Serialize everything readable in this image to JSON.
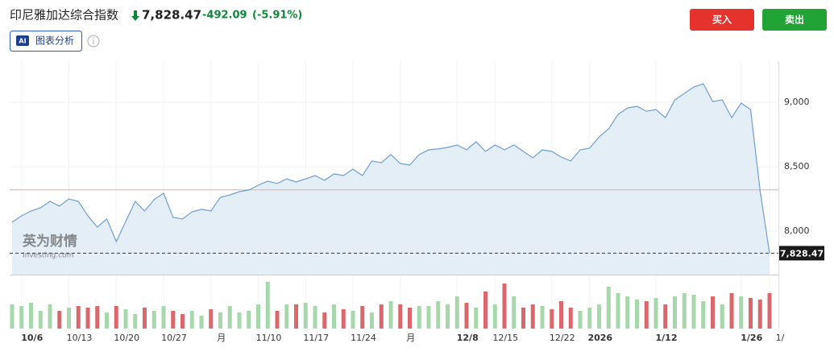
{
  "header": {
    "name": "印尼雅加达综合指数",
    "price": "7,828.47",
    "change": "-492.09",
    "change_pct": "(-5.91%)"
  },
  "buttons": {
    "buy": "买入",
    "sell": "卖出"
  },
  "ai_button": {
    "badge": "AI",
    "label": "图表分析"
  },
  "watermark": {
    "cn": "英为财情",
    "en": "Investing.com"
  },
  "chart_data": {
    "type": "line",
    "categories": [
      null,
      "10/6",
      null,
      null,
      null,
      null,
      "10/13",
      null,
      null,
      null,
      null,
      "10/20",
      null,
      null,
      null,
      null,
      "10/27",
      null,
      null,
      null,
      null,
      "月",
      null,
      null,
      null,
      null,
      "11/10",
      null,
      null,
      null,
      null,
      "11/17",
      null,
      null,
      null,
      null,
      "11/24",
      null,
      null,
      null,
      null,
      "月",
      null,
      null,
      null,
      null,
      null,
      "12/8",
      null,
      null,
      null,
      "12/15",
      null,
      null,
      null,
      null,
      null,
      "12/22",
      null,
      null,
      null,
      "2026",
      null,
      null,
      null,
      null,
      null,
      null,
      "1/12",
      null,
      null,
      null,
      null,
      null,
      null,
      null,
      null,
      "1/26",
      null,
      null,
      "1/"
    ],
    "values": [
      8069,
      8119,
      8156,
      8181,
      8231,
      8194,
      8250,
      8231,
      8119,
      8031,
      8094,
      7919,
      8075,
      8231,
      8156,
      8244,
      8294,
      8106,
      8094,
      8150,
      8169,
      8156,
      8262,
      8281,
      8306,
      8319,
      8356,
      8388,
      8369,
      8406,
      8381,
      8406,
      8431,
      8394,
      8444,
      8431,
      8481,
      8431,
      8544,
      8531,
      8594,
      8525,
      8513,
      8594,
      8631,
      8638,
      8650,
      8669,
      8631,
      8694,
      8619,
      8669,
      8631,
      8669,
      8619,
      8569,
      8631,
      8619,
      8575,
      8544,
      8631,
      8644,
      8731,
      8794,
      8906,
      8956,
      8969,
      8931,
      8944,
      8881,
      9019,
      9069,
      9119,
      9144,
      9006,
      9019,
      8881,
      8994,
      8944,
      8313,
      7828.47
    ],
    "color": "#6e9fd0",
    "fill": "#e4eef7",
    "ylim": [
      7662,
      9294
    ],
    "yticks": [
      {
        "value": 8000,
        "label": "8,000"
      },
      {
        "value": 8500,
        "label": "8,500"
      },
      {
        "value": 9000,
        "label": "9,000"
      }
    ],
    "previous_close": 8320.56,
    "grid": true,
    "volume": {
      "up_color": "#a6d8ab",
      "down_color": "#d9676b",
      "values": [
        30,
        28,
        32,
        22,
        30,
        22,
        26,
        28,
        26,
        28,
        20,
        28,
        24,
        18,
        26,
        22,
        28,
        22,
        18,
        22,
        16,
        24,
        20,
        28,
        20,
        22,
        30,
        58,
        22,
        30,
        30,
        32,
        28,
        20,
        30,
        24,
        22,
        28,
        20,
        30,
        34,
        30,
        26,
        28,
        28,
        34,
        30,
        40,
        32,
        26,
        46,
        30,
        56,
        40,
        26,
        30,
        28,
        24,
        34,
        26,
        22,
        26,
        30,
        52,
        44,
        40,
        36,
        34,
        38,
        30,
        40,
        44,
        42,
        34,
        40,
        30,
        44,
        40,
        38,
        36,
        44
      ]
    }
  }
}
